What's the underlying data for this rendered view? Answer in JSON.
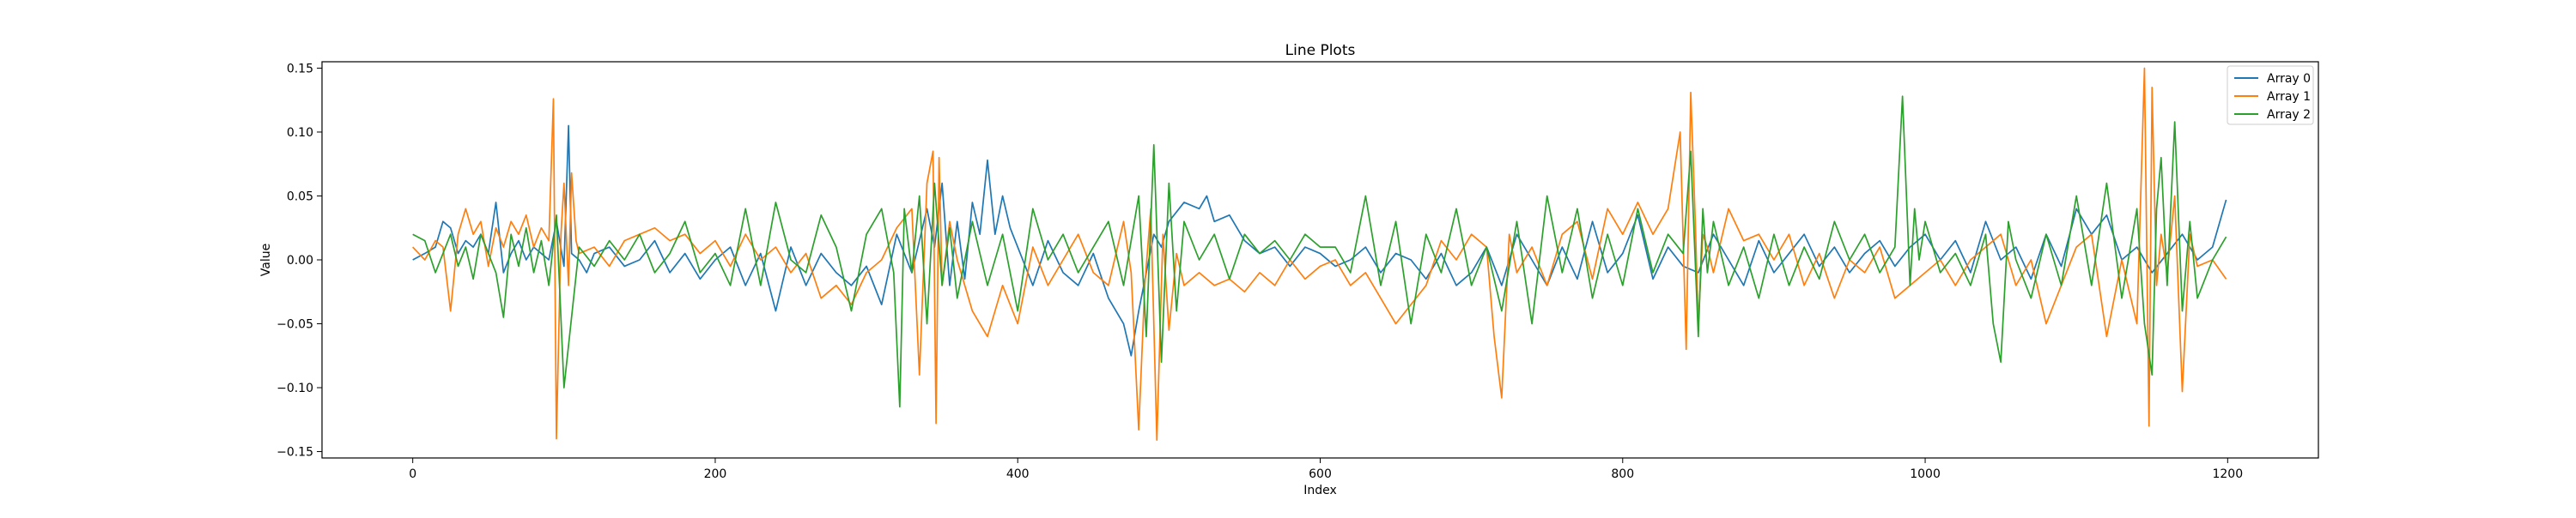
{
  "chart_data": {
    "type": "line",
    "title": "Line Plots",
    "xlabel": "Index",
    "ylabel": "Value",
    "xlim": [
      -60,
      1260
    ],
    "ylim": [
      -0.155,
      0.155
    ],
    "xticks": [
      0,
      200,
      400,
      600,
      800,
      1000,
      1200
    ],
    "yticks": [
      -0.15,
      -0.1,
      -0.05,
      0.0,
      0.05,
      0.1,
      0.15
    ],
    "xtick_labels": [
      "0",
      "200",
      "400",
      "600",
      "800",
      "1000",
      "1200"
    ],
    "ytick_labels": [
      "−0.15",
      "−0.10",
      "−0.05",
      "0.00",
      "0.05",
      "0.10",
      "0.15"
    ],
    "grid": false,
    "legend_position": "top-right",
    "n_points": 1200,
    "series": [
      {
        "name": "Array 0",
        "color": "#1f77b4",
        "x": [
          0,
          8,
          15,
          20,
          25,
          30,
          35,
          40,
          45,
          50,
          55,
          60,
          65,
          70,
          75,
          80,
          85,
          90,
          95,
          100,
          103,
          105,
          110,
          115,
          120,
          130,
          140,
          150,
          160,
          170,
          180,
          190,
          200,
          210,
          220,
          230,
          240,
          250,
          260,
          270,
          280,
          290,
          300,
          310,
          320,
          330,
          340,
          345,
          350,
          355,
          360,
          365,
          370,
          375,
          380,
          385,
          390,
          395,
          400,
          410,
          420,
          430,
          440,
          450,
          460,
          470,
          475,
          480,
          485,
          490,
          495,
          500,
          510,
          520,
          525,
          530,
          540,
          550,
          560,
          570,
          580,
          590,
          600,
          610,
          620,
          630,
          640,
          650,
          660,
          670,
          680,
          690,
          700,
          710,
          720,
          730,
          740,
          750,
          760,
          770,
          780,
          790,
          800,
          810,
          820,
          830,
          840,
          850,
          860,
          870,
          880,
          890,
          900,
          910,
          920,
          930,
          940,
          950,
          960,
          970,
          980,
          990,
          1000,
          1010,
          1020,
          1030,
          1040,
          1050,
          1060,
          1070,
          1080,
          1090,
          1100,
          1110,
          1120,
          1130,
          1140,
          1150,
          1160,
          1170,
          1180,
          1190,
          1199
        ],
        "values": [
          0.0,
          0.005,
          0.01,
          0.03,
          0.025,
          0.005,
          0.015,
          0.01,
          0.02,
          0.005,
          0.045,
          -0.01,
          0.005,
          0.015,
          0.0,
          0.01,
          0.005,
          0.0,
          0.03,
          -0.005,
          0.105,
          0.005,
          0.0,
          -0.01,
          0.005,
          0.01,
          -0.005,
          0.0,
          0.015,
          -0.01,
          0.005,
          -0.015,
          0.0,
          0.01,
          -0.02,
          0.005,
          -0.04,
          0.01,
          -0.02,
          0.005,
          -0.01,
          -0.02,
          -0.005,
          -0.035,
          0.02,
          -0.01,
          0.04,
          0.01,
          0.06,
          -0.02,
          0.03,
          -0.015,
          0.045,
          0.02,
          0.078,
          0.02,
          0.05,
          0.025,
          0.01,
          -0.02,
          0.015,
          -0.01,
          -0.02,
          0.005,
          -0.03,
          -0.05,
          -0.075,
          -0.04,
          -0.01,
          0.02,
          0.01,
          0.03,
          0.045,
          0.04,
          0.05,
          0.03,
          0.035,
          0.015,
          0.005,
          0.01,
          -0.005,
          0.01,
          0.005,
          -0.005,
          0.0,
          0.01,
          -0.01,
          0.005,
          0.0,
          -0.015,
          0.005,
          -0.02,
          -0.01,
          0.01,
          -0.02,
          0.02,
          0.0,
          -0.02,
          0.01,
          -0.015,
          0.03,
          -0.01,
          0.005,
          0.035,
          -0.015,
          0.01,
          -0.005,
          -0.01,
          0.02,
          0.0,
          -0.02,
          0.015,
          -0.01,
          0.005,
          0.02,
          -0.005,
          0.01,
          -0.01,
          0.005,
          0.015,
          -0.005,
          0.01,
          0.02,
          0.0,
          0.015,
          -0.01,
          0.03,
          0.0,
          0.01,
          -0.015,
          0.02,
          -0.005,
          0.04,
          0.02,
          0.035,
          0.0,
          0.01,
          -0.01,
          0.005,
          0.02,
          0.0,
          0.01,
          0.047
        ]
      },
      {
        "name": "Array 1",
        "color": "#ff7f0e",
        "x": [
          0,
          8,
          15,
          20,
          25,
          30,
          35,
          40,
          45,
          50,
          55,
          60,
          65,
          70,
          75,
          80,
          85,
          90,
          93,
          95,
          98,
          100,
          103,
          105,
          108,
          110,
          120,
          130,
          140,
          150,
          160,
          170,
          180,
          190,
          200,
          210,
          220,
          230,
          240,
          250,
          260,
          270,
          280,
          290,
          300,
          310,
          320,
          330,
          335,
          340,
          344,
          346,
          348,
          350,
          355,
          360,
          370,
          380,
          390,
          400,
          410,
          420,
          430,
          440,
          450,
          460,
          470,
          475,
          480,
          484,
          488,
          492,
          496,
          500,
          505,
          510,
          520,
          530,
          540,
          550,
          560,
          570,
          580,
          590,
          600,
          610,
          620,
          630,
          640,
          650,
          660,
          670,
          680,
          690,
          700,
          710,
          715,
          720,
          725,
          730,
          740,
          750,
          760,
          770,
          780,
          790,
          800,
          810,
          820,
          830,
          838,
          842,
          845,
          848,
          850,
          853,
          856,
          860,
          870,
          880,
          890,
          900,
          910,
          920,
          930,
          940,
          950,
          960,
          970,
          980,
          990,
          1000,
          1010,
          1020,
          1030,
          1040,
          1050,
          1060,
          1070,
          1080,
          1090,
          1100,
          1110,
          1120,
          1130,
          1140,
          1145,
          1148,
          1150,
          1153,
          1156,
          1160,
          1165,
          1170,
          1175,
          1180,
          1190,
          1199
        ],
        "values": [
          0.01,
          0.0,
          0.015,
          0.01,
          -0.04,
          0.02,
          0.04,
          0.02,
          0.03,
          -0.005,
          0.025,
          0.01,
          0.03,
          0.02,
          0.035,
          0.01,
          0.025,
          0.015,
          0.126,
          -0.14,
          0.02,
          0.06,
          -0.02,
          0.068,
          0.015,
          0.005,
          0.01,
          -0.005,
          0.015,
          0.02,
          0.025,
          0.015,
          0.02,
          0.005,
          0.015,
          -0.005,
          0.02,
          0.0,
          0.01,
          -0.01,
          0.005,
          -0.03,
          -0.02,
          -0.035,
          -0.01,
          0.0,
          0.025,
          0.04,
          -0.09,
          0.06,
          0.085,
          -0.128,
          0.08,
          -0.02,
          0.03,
          0.0,
          -0.04,
          -0.06,
          -0.02,
          -0.05,
          0.01,
          -0.02,
          0.0,
          0.02,
          -0.01,
          -0.02,
          0.03,
          -0.01,
          -0.133,
          -0.02,
          0.04,
          -0.141,
          0.02,
          -0.055,
          0.005,
          -0.02,
          -0.01,
          -0.02,
          -0.015,
          -0.025,
          -0.01,
          -0.02,
          0.0,
          -0.015,
          -0.005,
          0.0,
          -0.02,
          -0.01,
          -0.03,
          -0.05,
          -0.035,
          -0.02,
          0.015,
          0.0,
          0.02,
          0.01,
          -0.06,
          -0.108,
          0.02,
          -0.01,
          0.01,
          -0.02,
          0.02,
          0.03,
          -0.015,
          0.04,
          0.02,
          0.045,
          0.02,
          0.04,
          0.1,
          -0.07,
          0.131,
          0.03,
          -0.05,
          0.02,
          0.01,
          -0.01,
          0.04,
          0.015,
          0.02,
          0.0,
          0.02,
          -0.02,
          0.005,
          -0.03,
          0.0,
          -0.01,
          0.01,
          -0.03,
          -0.02,
          -0.01,
          0.0,
          -0.02,
          0.0,
          0.01,
          0.02,
          -0.02,
          0.0,
          -0.05,
          -0.02,
          0.01,
          0.02,
          -0.06,
          0.0,
          -0.05,
          0.15,
          -0.13,
          0.135,
          -0.02,
          0.02,
          -0.01,
          0.05,
          -0.103,
          0.02,
          -0.005,
          0.0,
          -0.015
        ]
      },
      {
        "name": "Array 2",
        "color": "#2ca02c",
        "x": [
          0,
          8,
          15,
          20,
          25,
          30,
          35,
          40,
          45,
          50,
          55,
          60,
          65,
          70,
          75,
          80,
          85,
          90,
          95,
          100,
          110,
          120,
          130,
          140,
          150,
          160,
          170,
          180,
          190,
          200,
          210,
          220,
          230,
          240,
          250,
          260,
          270,
          280,
          290,
          300,
          310,
          318,
          322,
          325,
          330,
          335,
          340,
          345,
          350,
          355,
          360,
          370,
          380,
          390,
          400,
          410,
          420,
          430,
          440,
          450,
          460,
          470,
          480,
          485,
          490,
          495,
          500,
          505,
          510,
          520,
          530,
          540,
          550,
          560,
          570,
          580,
          590,
          600,
          610,
          620,
          630,
          640,
          650,
          660,
          670,
          680,
          690,
          700,
          710,
          720,
          730,
          740,
          750,
          760,
          770,
          780,
          790,
          800,
          810,
          820,
          830,
          840,
          845,
          850,
          853,
          856,
          860,
          870,
          880,
          890,
          900,
          910,
          920,
          930,
          940,
          950,
          960,
          970,
          980,
          985,
          990,
          993,
          996,
          1000,
          1010,
          1020,
          1030,
          1040,
          1045,
          1050,
          1055,
          1060,
          1070,
          1080,
          1090,
          1100,
          1110,
          1120,
          1130,
          1140,
          1145,
          1150,
          1153,
          1156,
          1160,
          1165,
          1170,
          1175,
          1180,
          1190,
          1199
        ],
        "values": [
          0.02,
          0.015,
          -0.01,
          0.005,
          0.02,
          -0.005,
          0.01,
          -0.015,
          0.02,
          0.005,
          -0.01,
          -0.045,
          0.02,
          -0.005,
          0.025,
          -0.01,
          0.015,
          -0.02,
          0.035,
          -0.1,
          0.01,
          -0.005,
          0.015,
          0.0,
          0.02,
          -0.01,
          0.005,
          0.03,
          -0.01,
          0.005,
          -0.02,
          0.04,
          -0.02,
          0.045,
          0.0,
          -0.01,
          0.035,
          0.01,
          -0.04,
          0.02,
          0.04,
          -0.01,
          -0.115,
          0.04,
          -0.01,
          0.05,
          -0.05,
          0.06,
          -0.02,
          0.025,
          -0.03,
          0.03,
          -0.02,
          0.02,
          -0.04,
          0.04,
          0.0,
          0.02,
          -0.01,
          0.01,
          0.03,
          -0.02,
          0.05,
          -0.06,
          0.09,
          -0.08,
          0.06,
          -0.04,
          0.03,
          0.0,
          0.02,
          -0.015,
          0.02,
          0.005,
          0.015,
          0.0,
          0.02,
          0.01,
          0.01,
          -0.01,
          0.05,
          -0.02,
          0.03,
          -0.05,
          0.02,
          -0.01,
          0.04,
          -0.02,
          0.01,
          -0.04,
          0.03,
          -0.05,
          0.05,
          -0.01,
          0.04,
          -0.03,
          0.02,
          -0.02,
          0.04,
          -0.01,
          0.02,
          0.005,
          0.085,
          -0.06,
          0.04,
          -0.01,
          0.03,
          -0.02,
          0.01,
          -0.03,
          0.02,
          -0.02,
          0.01,
          -0.015,
          0.03,
          0.0,
          0.02,
          -0.01,
          0.01,
          0.128,
          -0.02,
          0.04,
          0.0,
          0.03,
          -0.01,
          0.005,
          -0.02,
          0.02,
          -0.05,
          -0.08,
          0.03,
          0.0,
          -0.03,
          0.02,
          -0.02,
          0.05,
          -0.02,
          0.06,
          -0.03,
          0.04,
          -0.05,
          -0.09,
          0.04,
          0.08,
          -0.02,
          0.108,
          -0.04,
          0.03,
          -0.03,
          0.0,
          0.018
        ]
      }
    ]
  }
}
